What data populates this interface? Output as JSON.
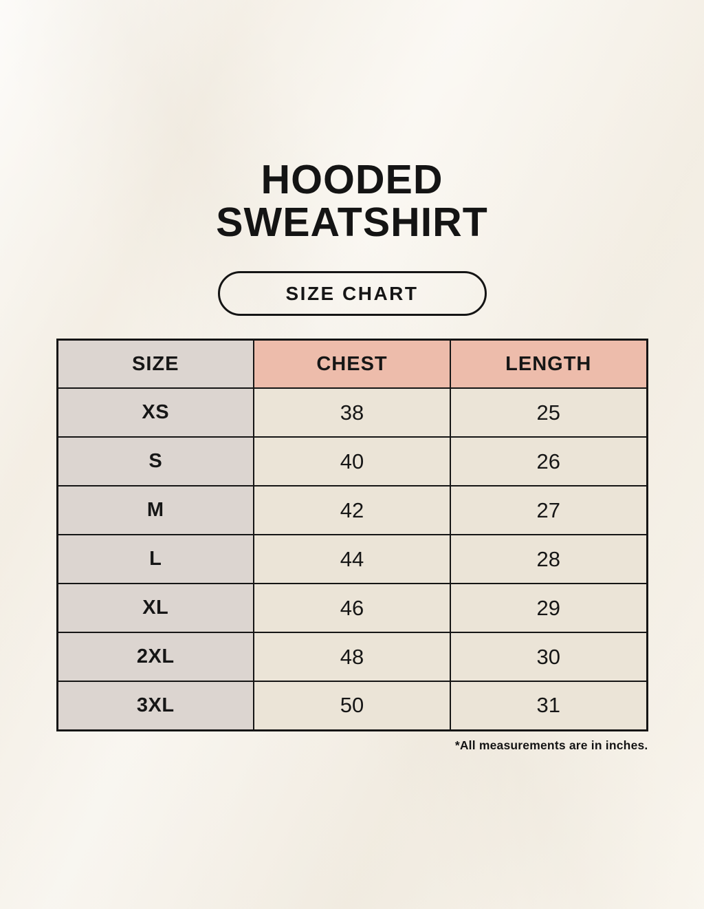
{
  "page": {
    "title_line1": "HOODED",
    "title_line2": "SWEATSHIRT",
    "badge_label": "SIZE CHART",
    "footnote": "*All measurements are in inches."
  },
  "colors": {
    "page_background": "#f8f4ec",
    "size_column_bg": "#dcd5d0",
    "header_accent_bg": "#edbcab",
    "data_cell_bg": "#ebe4d7",
    "border": "#151515",
    "text": "#141414"
  },
  "size_table": {
    "headers": [
      "SIZE",
      "CHEST",
      "LENGTH"
    ],
    "unit": "inches",
    "rows": [
      {
        "size": "XS",
        "chest": "38",
        "length": "25"
      },
      {
        "size": "S",
        "chest": "40",
        "length": "26"
      },
      {
        "size": "M",
        "chest": "42",
        "length": "27"
      },
      {
        "size": "L",
        "chest": "44",
        "length": "28"
      },
      {
        "size": "XL",
        "chest": "46",
        "length": "29"
      },
      {
        "size": "2XL",
        "chest": "48",
        "length": "30"
      },
      {
        "size": "3XL",
        "chest": "50",
        "length": "31"
      }
    ]
  }
}
